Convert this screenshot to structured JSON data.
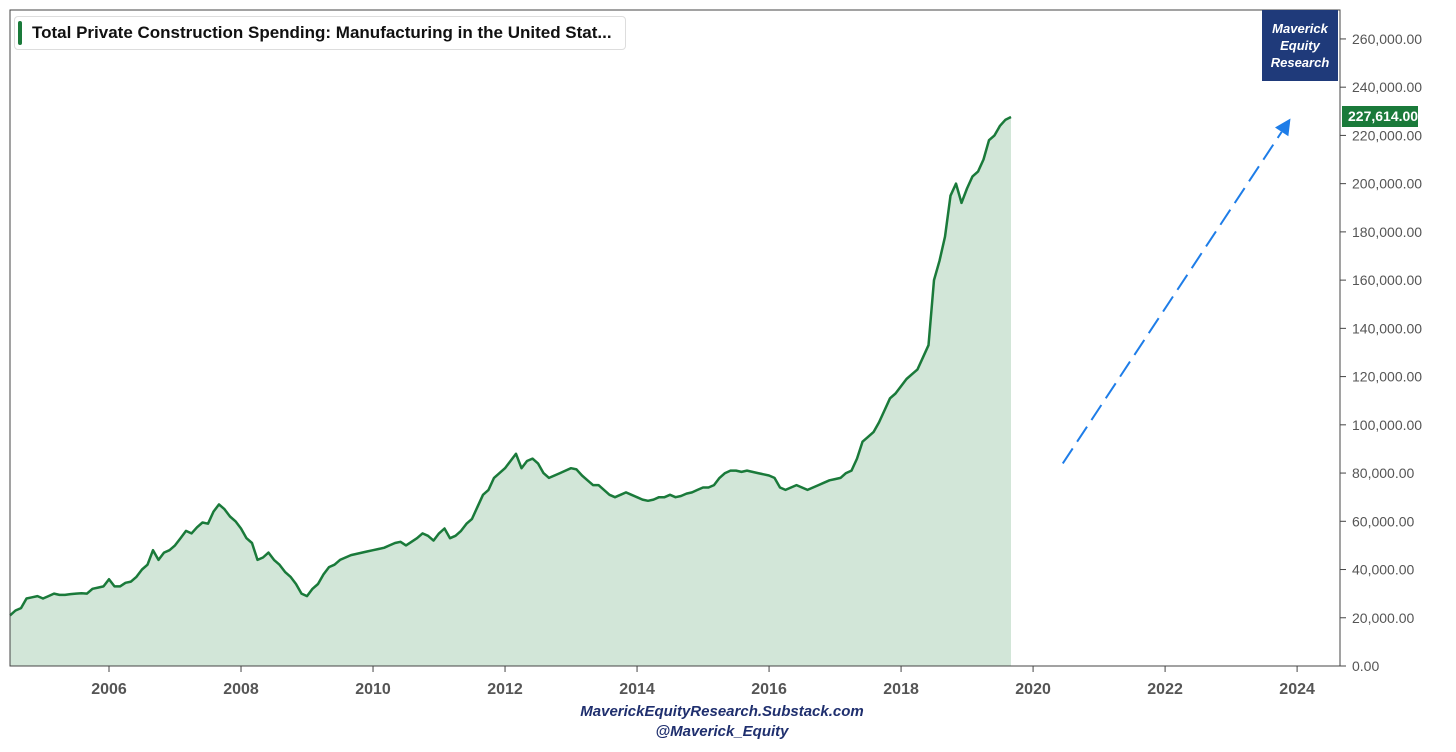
{
  "chart_data": {
    "type": "area",
    "title": "Total Private Construction Spending: Manufacturing in the United Stat...",
    "x_start": 2004.5,
    "x_step": 0.08333,
    "values": [
      21000,
      23000,
      24000,
      28000,
      28500,
      29000,
      28000,
      29000,
      30000,
      29500,
      29500,
      29800,
      30000,
      30200,
      30000,
      32000,
      32500,
      33000,
      36000,
      33000,
      33000,
      34500,
      35000,
      37000,
      40000,
      42000,
      48000,
      44000,
      47000,
      48000,
      50000,
      53000,
      56000,
      55000,
      57500,
      59500,
      59000,
      64000,
      67000,
      65000,
      62000,
      60000,
      57000,
      53000,
      51000,
      44000,
      45000,
      47000,
      44000,
      42000,
      39000,
      37000,
      34000,
      30000,
      29000,
      32000,
      34000,
      38000,
      41000,
      42000,
      44000,
      45000,
      46000,
      46500,
      47000,
      47500,
      48000,
      48500,
      49000,
      50000,
      51000,
      51500,
      50000,
      51500,
      53000,
      55000,
      54000,
      52000,
      55000,
      57000,
      53000,
      54000,
      56000,
      59000,
      61000,
      66000,
      71000,
      73000,
      78000,
      80000,
      82000,
      85000,
      88000,
      82000,
      85000,
      86000,
      84000,
      80000,
      78000,
      79000,
      80000,
      81000,
      82000,
      81500,
      79000,
      77000,
      75000,
      75000,
      73000,
      71000,
      70000,
      71000,
      72000,
      71000,
      70000,
      69000,
      68500,
      69000,
      70000,
      70000,
      71000,
      70000,
      70500,
      71500,
      72000,
      73000,
      74000,
      74000,
      75000,
      78000,
      80000,
      81000,
      81000,
      80500,
      81000,
      80500,
      80000,
      79500,
      79000,
      78000,
      74000,
      73000,
      74000,
      75000,
      74000,
      73000,
      74000,
      75000,
      76000,
      77000,
      77500,
      78000,
      80000,
      81000,
      86000,
      93000,
      95000,
      97000,
      101000,
      106000,
      111000,
      113000,
      116000,
      119000,
      121000,
      123000,
      128000,
      133000,
      160000,
      168000,
      178000,
      195000,
      200000,
      192000,
      198000,
      203000,
      205000,
      210000,
      218000,
      220000,
      224000,
      226500,
      227614
    ],
    "current_value": 227614,
    "current_value_label": "227,614.00",
    "xlim": [
      2004.5,
      2024.65
    ],
    "ylim": [
      0,
      272000
    ],
    "x_ticks": [
      2006,
      2008,
      2010,
      2012,
      2014,
      2016,
      2018,
      2020,
      2022,
      2024
    ],
    "x_tick_labels": [
      "2006",
      "2008",
      "2010",
      "2012",
      "2014",
      "2016",
      "2018",
      "2020",
      "2022",
      "2024"
    ],
    "y_ticks": [
      0,
      20000,
      40000,
      60000,
      80000,
      100000,
      120000,
      140000,
      160000,
      180000,
      200000,
      220000,
      240000,
      260000
    ],
    "y_tick_labels": [
      "0.00",
      "20,000.00",
      "40,000.00",
      "60,000.00",
      "80,000.00",
      "100,000.00",
      "120,000.00",
      "140,000.00",
      "160,000.00",
      "180,000.00",
      "200,000.00",
      "220,000.00",
      "240,000.00",
      "260,000.00"
    ],
    "annotation": {
      "type": "dashed-arrow",
      "from": [
        2020.45,
        84000
      ],
      "to": [
        2023.9,
        227000
      ],
      "color": "#1e7de8"
    },
    "grid": false,
    "legend": "top-left",
    "line_color": "#1a7a3a",
    "fill_color": "#d2e6d8"
  },
  "brand": {
    "line1": "Maverick",
    "line2": "Equity",
    "line3": "Research",
    "color": "#1f3a7a"
  },
  "footer": {
    "line1": "MaverickEquityResearch.Substack.com",
    "line2": "@Maverick_Equity"
  }
}
